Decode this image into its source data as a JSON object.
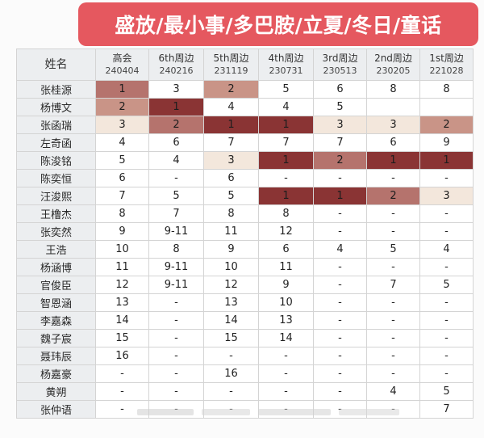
{
  "banner": {
    "text": "盛放/最小事/多巴胺/立夏/冬日/童话"
  },
  "table": {
    "corner": "姓名",
    "columns": [
      {
        "line1": "高会",
        "line2": "240404"
      },
      {
        "line1": "6th周边",
        "line2": "240216"
      },
      {
        "line1": "5th周边",
        "line2": "231119"
      },
      {
        "line1": "4th周边",
        "line2": "230731"
      },
      {
        "line1": "3rd周边",
        "line2": "230513"
      },
      {
        "line1": "2nd周边",
        "line2": "230205"
      },
      {
        "line1": "1st周边",
        "line2": "221028"
      }
    ],
    "rows": [
      {
        "name": "张桂源",
        "values": [
          "1",
          "3",
          "2",
          "5",
          "6",
          "8",
          "8"
        ],
        "colors": [
          "#b5736d",
          "",
          "#c99487",
          "",
          "",
          "",
          ""
        ]
      },
      {
        "name": "杨博文",
        "values": [
          "2",
          "1",
          "4",
          "4",
          "5",
          "",
          ""
        ],
        "colors": [
          "#c99487",
          "#8a3434",
          "",
          "",
          "",
          "",
          ""
        ]
      },
      {
        "name": "张函瑞",
        "values": [
          "3",
          "2",
          "1",
          "1",
          "3",
          "3",
          "2"
        ],
        "colors": [
          "#f3e7dc",
          "#b5736d",
          "#8a3434",
          "#8a3434",
          "#f3e7dc",
          "#f3e7dc",
          "#c99487"
        ]
      },
      {
        "name": "左奇函",
        "values": [
          "4",
          "6",
          "7",
          "7",
          "7",
          "6",
          "9"
        ],
        "colors": [
          "",
          "",
          "",
          "",
          "",
          "",
          ""
        ]
      },
      {
        "name": "陈浚铭",
        "values": [
          "5",
          "4",
          "3",
          "1",
          "2",
          "1",
          "1"
        ],
        "colors": [
          "",
          "",
          "#f3e7dc",
          "#8a3434",
          "#b5736d",
          "#8a3434",
          "#8a3434"
        ]
      },
      {
        "name": "陈奕恒",
        "values": [
          "6",
          "-",
          "6",
          "-",
          "-",
          "-",
          "-"
        ],
        "colors": [
          "",
          "",
          "",
          "",
          "",
          "",
          ""
        ]
      },
      {
        "name": "汪浚熙",
        "values": [
          "7",
          "5",
          "5",
          "1",
          "1",
          "2",
          "3"
        ],
        "colors": [
          "",
          "",
          "",
          "#8a3434",
          "#8a3434",
          "#b5736d",
          "#f3e7dc"
        ]
      },
      {
        "name": "王橹杰",
        "values": [
          "8",
          "7",
          "8",
          "8",
          "-",
          "-",
          "-"
        ],
        "colors": [
          "",
          "",
          "",
          "",
          "",
          "",
          ""
        ]
      },
      {
        "name": "张奕然",
        "values": [
          "9",
          "9-11",
          "11",
          "12",
          "-",
          "-",
          "-"
        ],
        "colors": [
          "",
          "",
          "",
          "",
          "",
          "",
          ""
        ]
      },
      {
        "name": "王浩",
        "values": [
          "10",
          "8",
          "9",
          "6",
          "4",
          "5",
          "4"
        ],
        "colors": [
          "",
          "",
          "",
          "",
          "",
          "",
          ""
        ]
      },
      {
        "name": "杨涵博",
        "values": [
          "11",
          "9-11",
          "10",
          "11",
          "-",
          "-",
          "-"
        ],
        "colors": [
          "",
          "",
          "",
          "",
          "",
          "",
          ""
        ]
      },
      {
        "name": "官俊臣",
        "values": [
          "12",
          "9-11",
          "12",
          "9",
          "-",
          "7",
          "5"
        ],
        "colors": [
          "",
          "",
          "",
          "",
          "",
          "",
          ""
        ]
      },
      {
        "name": "智恩涵",
        "values": [
          "13",
          "-",
          "13",
          "10",
          "-",
          "-",
          "-"
        ],
        "colors": [
          "",
          "",
          "",
          "",
          "",
          "",
          ""
        ]
      },
      {
        "name": "李嘉森",
        "values": [
          "14",
          "-",
          "14",
          "13",
          "-",
          "-",
          "-"
        ],
        "colors": [
          "",
          "",
          "",
          "",
          "",
          "",
          ""
        ]
      },
      {
        "name": "魏子宸",
        "values": [
          "15",
          "-",
          "15",
          "14",
          "-",
          "-",
          "-"
        ],
        "colors": [
          "",
          "",
          "",
          "",
          "",
          "",
          ""
        ]
      },
      {
        "name": "聂玮辰",
        "values": [
          "16",
          "-",
          "-",
          "-",
          "-",
          "-",
          "-"
        ],
        "colors": [
          "",
          "",
          "",
          "",
          "",
          "",
          ""
        ]
      },
      {
        "name": "杨嘉豪",
        "values": [
          "-",
          "-",
          "16",
          "-",
          "-",
          "-",
          "-"
        ],
        "colors": [
          "",
          "",
          "",
          "",
          "",
          "",
          ""
        ]
      },
      {
        "name": "黄朔",
        "values": [
          "-",
          "-",
          "-",
          "-",
          "-",
          "4",
          "5"
        ],
        "colors": [
          "",
          "",
          "",
          "",
          "",
          "",
          ""
        ]
      },
      {
        "name": "张仲语",
        "values": [
          "-",
          "-",
          "-",
          "-",
          "-",
          "-",
          "7"
        ],
        "colors": [
          "",
          "",
          "",
          "",
          "",
          "",
          ""
        ]
      }
    ]
  }
}
